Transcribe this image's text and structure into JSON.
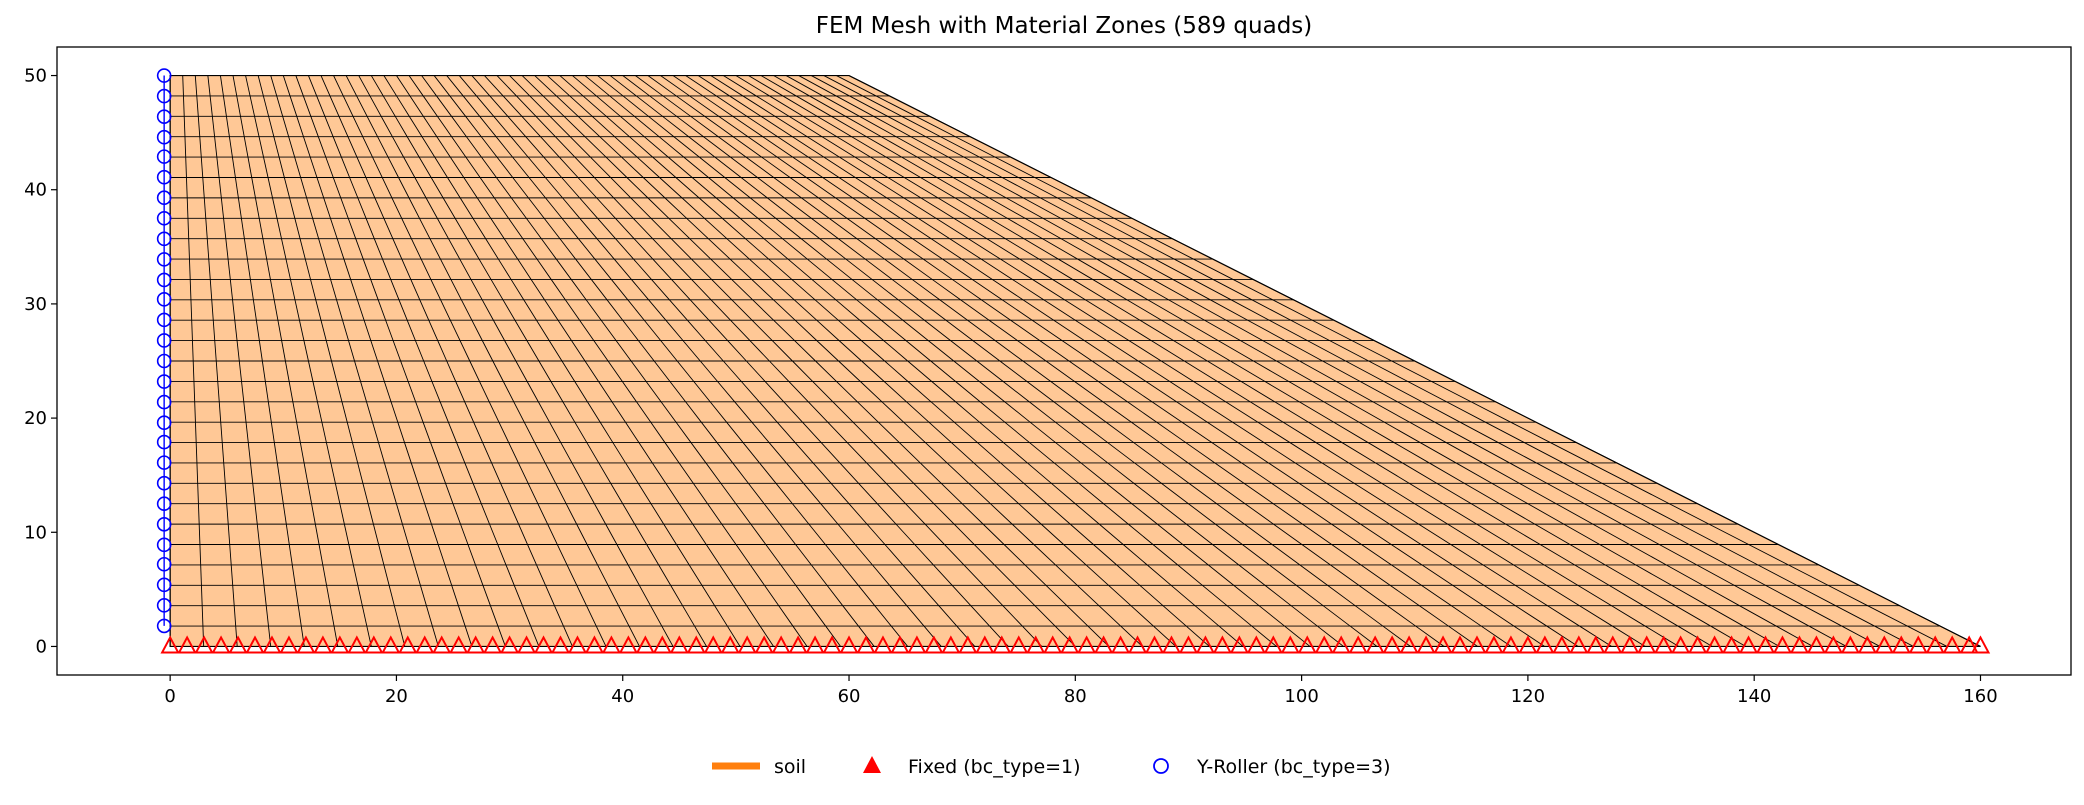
{
  "chart_data": {
    "type": "mesh",
    "title": "FEM Mesh with Material Zones (589 quads)",
    "xlabel": "",
    "ylabel": "",
    "xlim": [
      -10,
      168
    ],
    "ylim": [
      -2.5,
      52.5
    ],
    "xticks": [
      0,
      20,
      40,
      60,
      80,
      100,
      120,
      140,
      160
    ],
    "yticks": [
      0,
      10,
      20,
      30,
      40,
      50
    ],
    "grid": false,
    "legend_placement": "bottom-center",
    "domain_outline": [
      [
        0,
        0
      ],
      [
        160,
        0
      ],
      [
        60,
        50
      ],
      [
        0,
        50
      ]
    ],
    "material_zones": [
      {
        "name": "soil",
        "color": "#ffc896",
        "edge_color": "#000000"
      }
    ],
    "element_count": 589,
    "boundary_conditions": {
      "fixed": {
        "label": "Fixed (bc_type=1)",
        "marker": "triangle",
        "color": "#ff0000",
        "y": 0,
        "x": [
          0,
          1.5,
          3,
          4.5,
          6,
          7.5,
          9,
          10.5,
          12,
          13.5,
          15,
          16.5,
          18,
          19.5,
          21,
          22.5,
          24,
          25.5,
          27,
          28.5,
          30,
          31.5,
          33,
          34.5,
          36,
          37.5,
          39,
          40.5,
          42,
          43.5,
          45,
          46.5,
          48,
          49.5,
          51,
          52.5,
          54,
          55.5,
          57,
          58.5,
          60,
          61.5,
          63,
          64.5,
          66,
          67.5,
          69,
          70.5,
          72,
          73.5,
          75,
          76.5,
          78,
          79.5,
          81,
          82.5,
          84,
          85.5,
          87,
          88.5,
          90,
          91.5,
          93,
          94.5,
          96,
          97.5,
          99,
          100.5,
          102,
          103.5,
          105,
          106.5,
          108,
          109.5,
          111,
          112.5,
          114,
          115.5,
          117,
          118.5,
          120,
          121.5,
          123,
          124.5,
          126,
          127.5,
          129,
          130.5,
          132,
          133.5,
          135,
          136.5,
          138,
          139.5,
          141,
          142.5,
          144,
          145.5,
          147,
          148.5,
          150,
          151.5,
          153,
          154.5,
          156,
          157.5,
          159,
          160
        ]
      },
      "y_roller": {
        "label": "Y-Roller (bc_type=3)",
        "marker": "circle-open",
        "color": "#0000ff",
        "x": 0,
        "y": [
          1.8,
          3.6,
          5.4,
          7.2,
          8.9,
          10.7,
          12.5,
          14.3,
          16.1,
          17.9,
          19.6,
          21.4,
          23.2,
          25.0,
          26.8,
          28.6,
          30.4,
          32.1,
          33.9,
          35.7,
          37.5,
          39.3,
          41.1,
          42.9,
          44.6,
          46.4,
          48.2,
          50.0
        ]
      }
    },
    "legend": [
      {
        "label": "soil",
        "kind": "line",
        "color": "#ff7f0e"
      },
      {
        "label": "Fixed (bc_type=1)",
        "kind": "triangle",
        "color": "#ff0000"
      },
      {
        "label": "Y-Roller (bc_type=3)",
        "kind": "circle-open",
        "color": "#0000ff"
      }
    ]
  }
}
